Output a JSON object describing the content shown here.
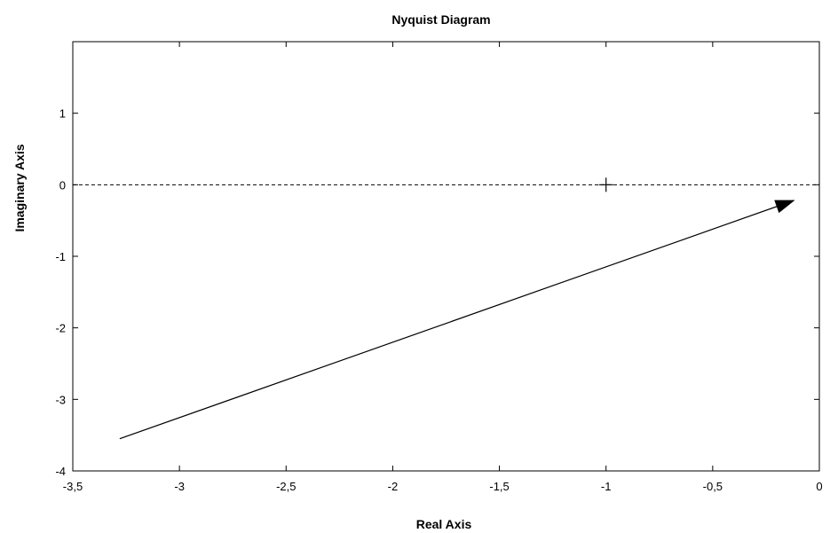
{
  "chart_data": {
    "type": "line",
    "title": "Nyquist Diagram",
    "xlabel": "Real Axis",
    "ylabel": "Imaginary Axis",
    "xlim": [
      -3.5,
      0
    ],
    "ylim": [
      -4,
      2
    ],
    "x_ticks": [
      -3.5,
      -3,
      -2.5,
      -2,
      -1.5,
      -1,
      -0.5,
      0
    ],
    "x_tick_labels": [
      "-3,5",
      "-3",
      "-2,5",
      "-2",
      "-1,5",
      "-1",
      "-0,5",
      "0"
    ],
    "y_ticks": [
      -4,
      -3,
      -2,
      -1,
      0,
      1
    ],
    "y_tick_labels": [
      "-4",
      "-3",
      "-2",
      "-1",
      "0",
      "1"
    ],
    "grid": false,
    "zero_line": {
      "y": 0,
      "style": "dashed",
      "color": "#000000"
    },
    "critical_point": {
      "x": -1,
      "y": 0,
      "marker": "+"
    },
    "series": [
      {
        "x": [
          -3.28,
          -0.12
        ],
        "y": [
          -3.55,
          -0.22
        ],
        "color": "#000000",
        "arrow_at_end": true
      }
    ]
  }
}
